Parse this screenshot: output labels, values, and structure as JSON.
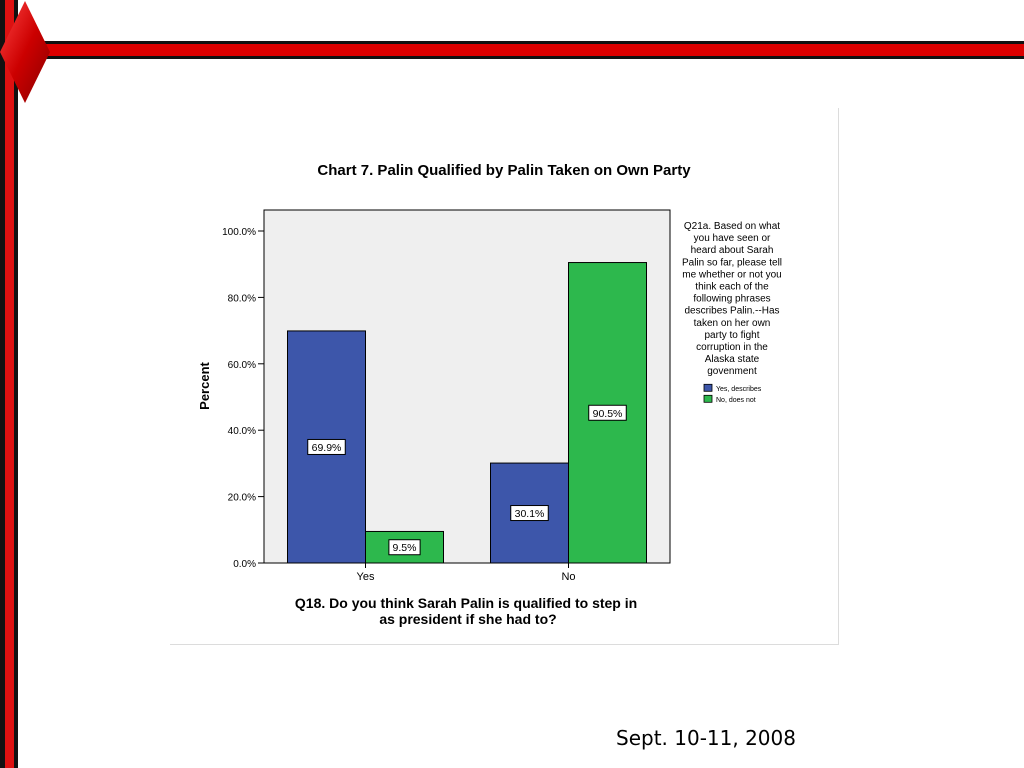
{
  "colors": {
    "accent_red": "#dd1111",
    "bar_blue": "#3d56aa",
    "bar_green": "#2db84d",
    "plot_bg": "#efefef"
  },
  "footer": {
    "date": "Sept. 10-11, 2008"
  },
  "chart_data": {
    "type": "bar",
    "title": "Chart 7. Palin Qualified by Palin Taken on Own Party",
    "xlabel": "Q18. Do you think Sarah Palin is qualified to step in as president if she had to?",
    "xlabel_lines": [
      "Q18. Do you think Sarah Palin is qualified to step in",
      "as president if she had to?"
    ],
    "ylabel": "Percent",
    "categories": [
      "Yes",
      "No"
    ],
    "ylim": [
      0,
      100
    ],
    "yticks": [
      0,
      20,
      40,
      60,
      80,
      100
    ],
    "ytick_labels": [
      "0.0%",
      "20.0%",
      "40.0%",
      "60.0%",
      "80.0%",
      "100.0%"
    ],
    "series": [
      {
        "name": "Yes, describes",
        "values": [
          69.9,
          30.1
        ],
        "labels": [
          "69.9%",
          "30.1%"
        ],
        "color": "#3d56aa"
      },
      {
        "name": "No, does not",
        "values": [
          9.5,
          90.5
        ],
        "labels": [
          "9.5%",
          "90.5%"
        ],
        "color": "#2db84d"
      }
    ],
    "legend": {
      "title": "Q21a. Based on what you have seen or heard about Sarah Palin so far, please tell me whether or not you think each of the following phrases describes Palin.--Has taken on her own party to fight corruption in the Alaska state govenment",
      "title_lines": [
        "Q21a. Based on what",
        "you have seen or",
        "heard about Sarah",
        "Palin so far, please tell",
        "me whether or not you",
        "think each of the",
        "following phrases",
        "describes Palin.--Has",
        "taken on her own",
        "party to fight",
        "corruption in the",
        "Alaska state",
        "govenment"
      ],
      "placement": "right"
    },
    "grid": false
  }
}
